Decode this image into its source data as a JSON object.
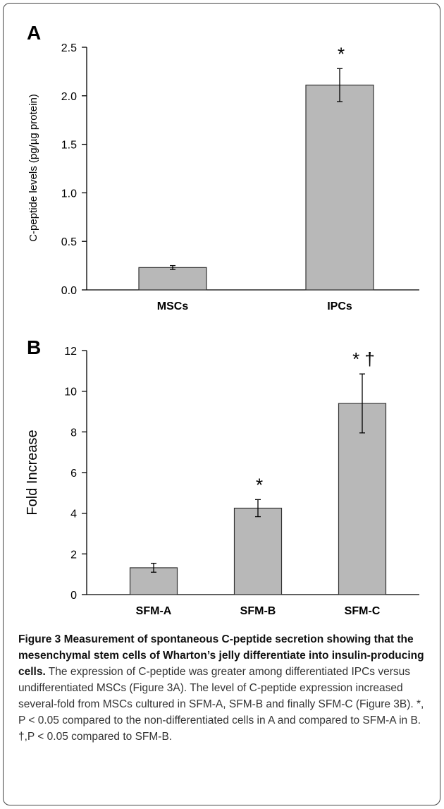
{
  "chart_data": [
    {
      "panel": "A",
      "type": "bar",
      "categories": [
        "MSCs",
        "IPCs"
      ],
      "values": [
        0.23,
        2.11
      ],
      "errors": [
        0.02,
        0.17
      ],
      "annotations": [
        "",
        "*"
      ],
      "ylabel": "C-peptide levels (pg/µg protein)",
      "ylim": [
        0,
        2.5
      ],
      "yticks": [
        "0.0",
        "0.5",
        "1.0",
        "1.5",
        "2.0",
        "2.5"
      ],
      "bar_color": "#b8b8b8",
      "grid": false
    },
    {
      "panel": "B",
      "type": "bar",
      "categories": [
        "SFM-A",
        "SFM-B",
        "SFM-C"
      ],
      "values": [
        1.32,
        4.25,
        9.4
      ],
      "errors": [
        0.22,
        0.42,
        1.45
      ],
      "annotations": [
        "",
        "*",
        "*  †"
      ],
      "ylabel": "Fold Increase",
      "ylim": [
        0,
        12
      ],
      "yticks": [
        "0",
        "2",
        "4",
        "6",
        "8",
        "10",
        "12"
      ],
      "bar_color": "#b8b8b8",
      "grid": false
    }
  ],
  "caption": {
    "title": "Figure 3 Measurement of spontaneous C-peptide secretion showing that the mesenchymal stem cells of Wharton’s jelly differentiate into insulin-producing cells.",
    "body": " The expression of C-peptide was greater among differentiated IPCs versus undifferentiated MSCs (Figure 3A). The level of C-peptide expression increased several-fold from MSCs cultured in SFM-A, SFM-B and finally SFM-C (Figure 3B). *, P < 0.05 compared to the non-differentiated cells in A and compared to SFM-A in B. †,P < 0.05 compared to SFM-B."
  }
}
